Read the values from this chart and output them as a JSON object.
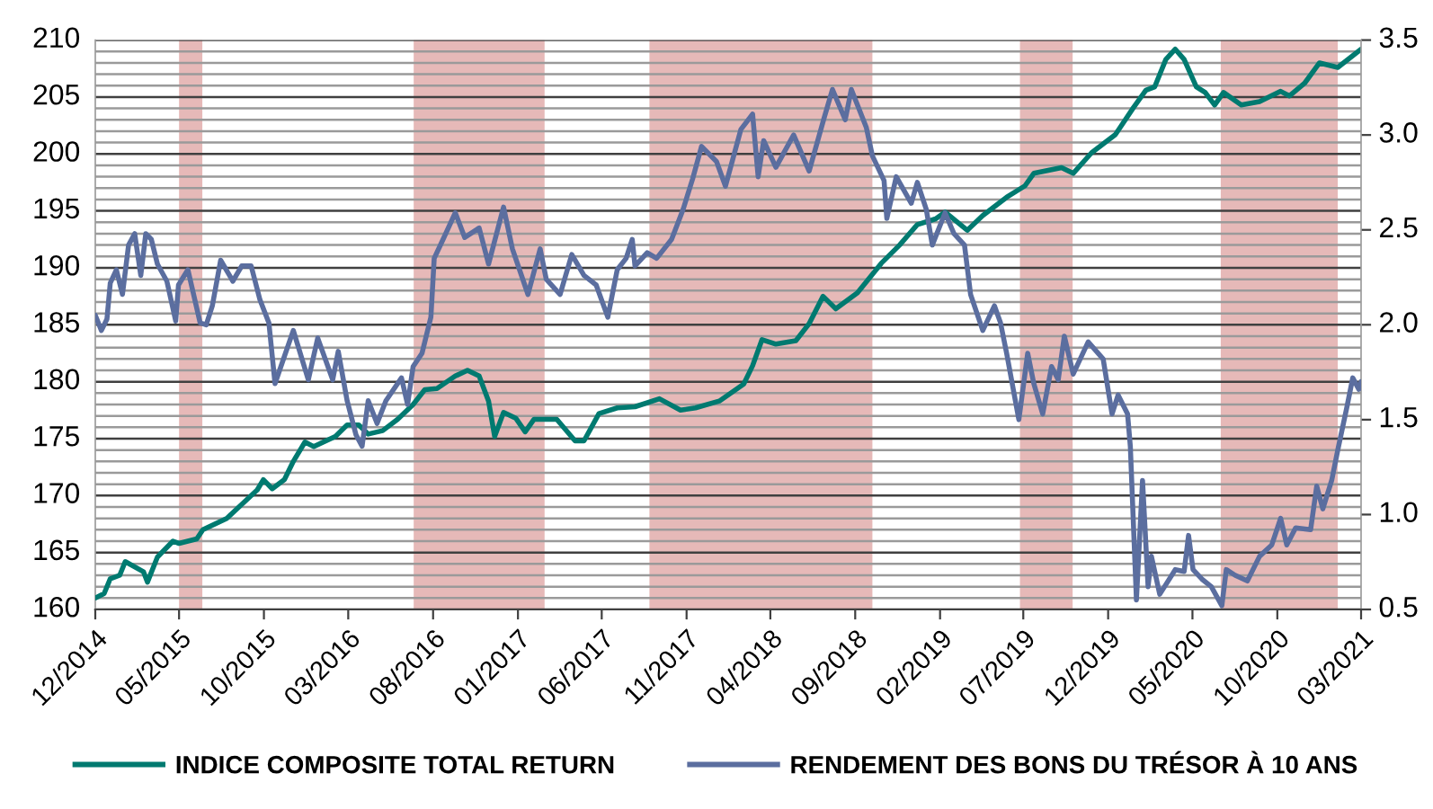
{
  "chart_data": {
    "type": "line",
    "series": [
      {
        "name": "INDICE COMPOSITE TOTAL RETURN",
        "color": "#007a70",
        "x": [
          "2014-12-01",
          "2014-12-17",
          "2014-12-28",
          "2015-01-14",
          "2015-01-24",
          "2015-02-26",
          "2015-03-05",
          "2015-03-23",
          "2015-04-20",
          "2015-05-01",
          "2015-06-02",
          "2015-06-13",
          "2015-07-26",
          "2015-08-17",
          "2015-09-19",
          "2015-09-30",
          "2015-10-16",
          "2015-11-07",
          "2015-11-23",
          "2015-12-14",
          "2015-12-30",
          "2016-02-07",
          "2016-02-28",
          "2016-03-20",
          "2016-04-06",
          "2016-05-02",
          "2016-05-29",
          "2016-06-26",
          "2016-07-17",
          "2016-08-08",
          "2016-09-10",
          "2016-10-02",
          "2016-10-23",
          "2016-11-09",
          "2016-11-20",
          "2016-12-06",
          "2016-12-28",
          "2017-01-14",
          "2017-01-30",
          "2017-03-12",
          "2017-04-14",
          "2017-04-30",
          "2017-05-27",
          "2017-06-29",
          "2017-07-31",
          "2017-09-13",
          "2017-10-21",
          "2017-11-17",
          "2017-12-30",
          "2018-02-12",
          "2018-02-28",
          "2018-03-17",
          "2018-04-11",
          "2018-05-17",
          "2018-06-10",
          "2018-07-05",
          "2018-07-28",
          "2018-09-05",
          "2018-10-18",
          "2018-11-20",
          "2018-12-22",
          "2019-01-24",
          "2019-02-10",
          "2019-03-22",
          "2019-04-19",
          "2019-06-01",
          "2019-07-04",
          "2019-07-20",
          "2019-09-08",
          "2019-09-29",
          "2019-11-01",
          "2019-12-14",
          "2020-01-16",
          "2020-02-07",
          "2020-02-23",
          "2020-03-14",
          "2020-03-31",
          "2020-04-16",
          "2020-05-08",
          "2020-05-24",
          "2020-06-10",
          "2020-06-26",
          "2020-07-28",
          "2020-08-30",
          "2020-10-07",
          "2020-10-23",
          "2020-11-19",
          "2020-12-16",
          "2021-01-18",
          "2021-03-01"
        ],
        "values": [
          161.0,
          161.4,
          162.7,
          163.0,
          164.2,
          163.3,
          162.4,
          164.6,
          166.0,
          165.8,
          166.2,
          167.0,
          168.0,
          169.0,
          170.5,
          171.4,
          170.6,
          171.4,
          173.0,
          174.7,
          174.3,
          175.2,
          176.2,
          176.2,
          175.4,
          175.7,
          176.7,
          178.0,
          179.3,
          179.4,
          180.5,
          181.0,
          180.5,
          178.3,
          175.2,
          177.3,
          176.8,
          175.6,
          176.7,
          176.7,
          174.8,
          174.8,
          177.2,
          177.7,
          177.8,
          178.5,
          177.5,
          177.7,
          178.3,
          179.8,
          181.4,
          183.7,
          183.3,
          183.6,
          185.1,
          187.5,
          186.4,
          187.8,
          190.4,
          192.0,
          193.8,
          194.3,
          194.9,
          193.3,
          194.6,
          196.2,
          197.2,
          198.3,
          198.8,
          198.3,
          200.1,
          201.7,
          204.1,
          205.6,
          205.9,
          208.3,
          209.2,
          208.3,
          205.9,
          205.4,
          204.3,
          205.4,
          204.3,
          204.6,
          205.5,
          205.1,
          206.2,
          208.0,
          207.6,
          209.2
        ]
      },
      {
        "name": "RENDEMENT DES BONS DU TRÉSOR À 10 ANS",
        "color": "#5b6e9f",
        "axis": "y2",
        "x": [
          "2014-12-01",
          "2014-12-12",
          "2014-12-22",
          "2014-12-28",
          "2015-01-08",
          "2015-01-19",
          "2015-01-30",
          "2015-02-10",
          "2015-02-21",
          "2015-03-02",
          "2015-03-12",
          "2015-03-23",
          "2015-04-09",
          "2015-04-25",
          "2015-04-30",
          "2015-05-17",
          "2015-06-08",
          "2015-06-19",
          "2015-06-30",
          "2015-07-15",
          "2015-08-06",
          "2015-08-22",
          "2015-09-08",
          "2015-09-24",
          "2015-10-10",
          "2015-10-21",
          "2015-11-23",
          "2015-12-20",
          "2016-01-06",
          "2016-02-02",
          "2016-02-12",
          "2016-02-28",
          "2016-03-15",
          "2016-03-26",
          "2016-04-06",
          "2016-04-22",
          "2016-05-08",
          "2016-06-05",
          "2016-06-16",
          "2016-06-26",
          "2016-07-12",
          "2016-07-28",
          "2016-08-03",
          "2016-08-19",
          "2016-09-10",
          "2016-09-27",
          "2016-10-23",
          "2016-11-09",
          "2016-12-06",
          "2016-12-22",
          "2017-01-19",
          "2017-02-10",
          "2017-02-21",
          "2017-03-18",
          "2017-04-08",
          "2017-04-30",
          "2017-05-22",
          "2017-06-12",
          "2017-06-29",
          "2017-07-15",
          "2017-07-26",
          "2017-07-31",
          "2017-08-22",
          "2017-09-08",
          "2017-10-05",
          "2017-10-26",
          "2017-11-12",
          "2017-11-28",
          "2017-12-25",
          "2018-01-10",
          "2018-02-07",
          "2018-02-28",
          "2018-03-10",
          "2018-03-20",
          "2018-04-11",
          "2018-05-13",
          "2018-06-10",
          "2018-07-06",
          "2018-07-22",
          "2018-08-14",
          "2018-08-25",
          "2018-09-21",
          "2018-10-02",
          "2018-10-23",
          "2018-10-28",
          "2018-11-14",
          "2018-12-11",
          "2018-12-22",
          "2019-01-07",
          "2019-01-18",
          "2019-02-10",
          "2019-02-26",
          "2019-03-17",
          "2019-03-28",
          "2019-04-19",
          "2019-05-10",
          "2019-05-21",
          "2019-06-01",
          "2019-06-23",
          "2019-07-09",
          "2019-07-20",
          "2019-08-05",
          "2019-08-21",
          "2019-09-02",
          "2019-09-13",
          "2019-09-29",
          "2019-10-26",
          "2019-11-22",
          "2019-12-08",
          "2019-12-19",
          "2020-01-05",
          "2020-01-10",
          "2020-01-21",
          "2020-02-01",
          "2020-02-11",
          "2020-02-17",
          "2020-03-03",
          "2020-03-31",
          "2020-04-16",
          "2020-04-24",
          "2020-05-02",
          "2020-05-18",
          "2020-06-04",
          "2020-06-23",
          "2020-07-01",
          "2020-07-17",
          "2020-08-08",
          "2020-08-30",
          "2020-09-21",
          "2020-10-07",
          "2020-10-18",
          "2020-11-03",
          "2020-11-30",
          "2020-12-11",
          "2020-12-22",
          "2021-01-07",
          "2021-01-18",
          "2021-02-03",
          "2021-02-14",
          "2021-02-25",
          "2021-03-01"
        ],
        "values": [
          2.05,
          1.97,
          2.03,
          2.22,
          2.29,
          2.16,
          2.42,
          2.48,
          2.26,
          2.48,
          2.45,
          2.32,
          2.23,
          2.02,
          2.21,
          2.29,
          2.01,
          2.0,
          2.1,
          2.34,
          2.23,
          2.31,
          2.31,
          2.13,
          2.01,
          1.69,
          1.97,
          1.71,
          1.93,
          1.71,
          1.86,
          1.6,
          1.42,
          1.36,
          1.6,
          1.48,
          1.6,
          1.72,
          1.58,
          1.78,
          1.85,
          2.04,
          2.35,
          2.45,
          2.59,
          2.46,
          2.51,
          2.32,
          2.62,
          2.4,
          2.16,
          2.4,
          2.24,
          2.16,
          2.37,
          2.26,
          2.21,
          2.04,
          2.29,
          2.35,
          2.45,
          2.31,
          2.38,
          2.35,
          2.45,
          2.61,
          2.77,
          2.94,
          2.86,
          2.73,
          3.03,
          3.11,
          2.78,
          2.97,
          2.83,
          3.0,
          2.81,
          3.08,
          3.24,
          3.08,
          3.24,
          3.04,
          2.89,
          2.76,
          2.56,
          2.78,
          2.64,
          2.75,
          2.61,
          2.42,
          2.59,
          2.48,
          2.42,
          2.16,
          1.97,
          2.1,
          2.01,
          1.85,
          1.5,
          1.85,
          1.69,
          1.53,
          1.78,
          1.71,
          1.94,
          1.74,
          1.91,
          1.82,
          1.53,
          1.63,
          1.53,
          1.36,
          0.55,
          1.18,
          0.62,
          0.78,
          0.58,
          0.71,
          0.7,
          0.89,
          0.71,
          0.66,
          0.62,
          0.52,
          0.71,
          0.68,
          0.65,
          0.78,
          0.84,
          0.98,
          0.84,
          0.93,
          0.92,
          1.15,
          1.03,
          1.18,
          1.34,
          1.56,
          1.72,
          1.66,
          1.7
        ]
      }
    ],
    "xlim": [
      "2014-12-01",
      "2021-03-01"
    ],
    "xticks": [
      {
        "value": "2014-12-01",
        "label": "12/2014"
      },
      {
        "value": "2015-05-01",
        "label": "05/2015"
      },
      {
        "value": "2015-10-01",
        "label": "10/2015"
      },
      {
        "value": "2016-03-01",
        "label": "03/2016"
      },
      {
        "value": "2016-08-01",
        "label": "08/2016"
      },
      {
        "value": "2017-01-01",
        "label": "01/2017"
      },
      {
        "value": "2017-06-01",
        "label": "06/2017"
      },
      {
        "value": "2017-11-01",
        "label": "11/2017"
      },
      {
        "value": "2018-04-01",
        "label": "04/2018"
      },
      {
        "value": "2018-09-01",
        "label": "09/2018"
      },
      {
        "value": "2019-02-01",
        "label": "02/2019"
      },
      {
        "value": "2019-07-01",
        "label": "07/2019"
      },
      {
        "value": "2019-12-01",
        "label": "12/2019"
      },
      {
        "value": "2020-05-01",
        "label": "05/2020"
      },
      {
        "value": "2020-10-01",
        "label": "10/2020"
      },
      {
        "value": "2021-03-01",
        "label": "03/2021"
      }
    ],
    "ylim": [
      160,
      210
    ],
    "yticks": [
      160,
      {
        "value": 161,
        "label": null
      },
      {
        "value": 162,
        "label": null
      },
      {
        "value": 163,
        "label": null
      },
      {
        "value": 164,
        "label": null
      },
      165,
      {
        "value": 166,
        "label": null
      },
      {
        "value": 167,
        "label": null
      },
      {
        "value": 168,
        "label": null
      },
      {
        "value": 169,
        "label": null
      },
      170,
      {
        "value": 171,
        "label": null
      },
      {
        "value": 172,
        "label": null
      },
      {
        "value": 173,
        "label": null
      },
      {
        "value": 174,
        "label": null
      },
      175,
      {
        "value": 176,
        "label": null
      },
      {
        "value": 177,
        "label": null
      },
      {
        "value": 178,
        "label": null
      },
      {
        "value": 179,
        "label": null
      },
      180,
      {
        "value": 181,
        "label": null
      },
      {
        "value": 182,
        "label": null
      },
      {
        "value": 183,
        "label": null
      },
      {
        "value": 184,
        "label": null
      },
      185,
      {
        "value": 186,
        "label": null
      },
      {
        "value": 187,
        "label": null
      },
      {
        "value": 188,
        "label": null
      },
      {
        "value": 189,
        "label": null
      },
      190,
      {
        "value": 191,
        "label": null
      },
      {
        "value": 192,
        "label": null
      },
      {
        "value": 193,
        "label": null
      },
      {
        "value": 194,
        "label": null
      },
      195,
      {
        "value": 196,
        "label": null
      },
      {
        "value": 197,
        "label": null
      },
      {
        "value": 198,
        "label": null
      },
      {
        "value": 199,
        "label": null
      },
      200,
      {
        "value": 201,
        "label": null
      },
      {
        "value": 202,
        "label": null
      },
      {
        "value": 203,
        "label": null
      },
      {
        "value": 204,
        "label": null
      },
      205,
      {
        "value": 206,
        "label": null
      },
      {
        "value": 207,
        "label": null
      },
      {
        "value": 208,
        "label": null
      },
      {
        "value": 209,
        "label": null
      },
      210
    ],
    "y2lim": [
      0.5,
      3.5
    ],
    "y2ticks": [
      0.5,
      {
        "value": 1,
        "label": "1.0"
      },
      1.5,
      {
        "value": 2,
        "label": "2.0"
      },
      2.5,
      {
        "value": 3,
        "label": "3.0"
      },
      3.5
    ],
    "bands": [
      {
        "axis": "x",
        "from": "2015-05-01",
        "to": "2015-06-12",
        "color": "#e6b9b8"
      },
      {
        "axis": "x",
        "from": "2016-06-27",
        "to": "2017-02-18",
        "color": "#e6b9b8"
      },
      {
        "axis": "x",
        "from": "2017-08-26",
        "to": "2018-10-02",
        "color": "#e6b9b8"
      },
      {
        "axis": "x",
        "from": "2019-06-25",
        "to": "2019-09-28",
        "color": "#e6b9b8"
      },
      {
        "axis": "x",
        "from": "2020-06-21",
        "to": "2021-01-18",
        "color": "#e6b9b8"
      }
    ],
    "grid": "y",
    "legend": "bottom"
  }
}
